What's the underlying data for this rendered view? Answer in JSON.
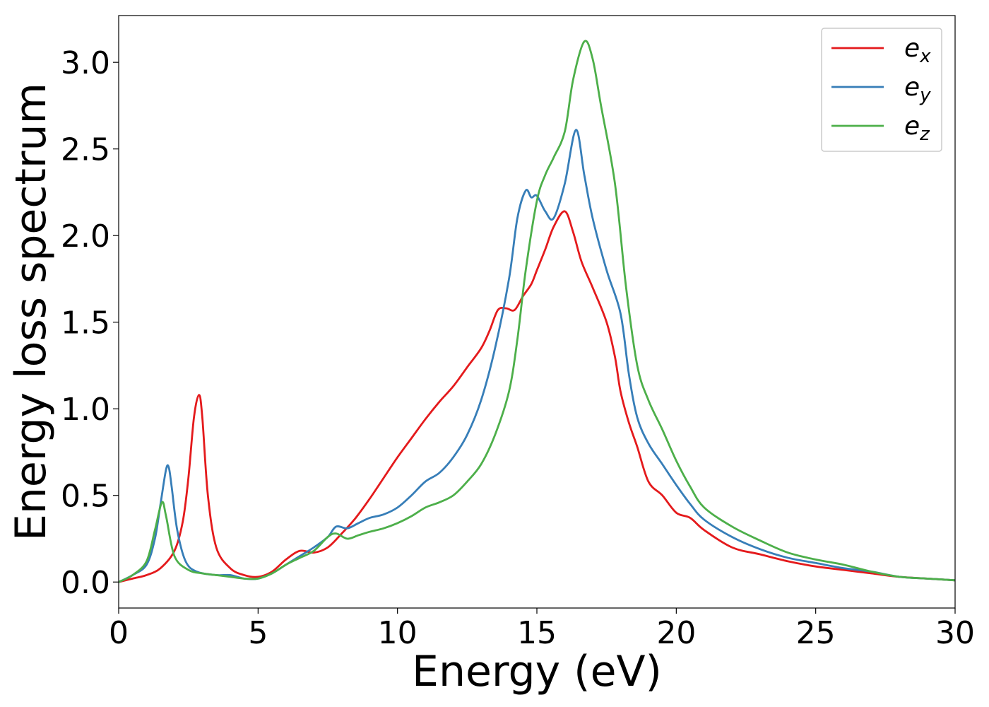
{
  "chart_data": {
    "type": "line",
    "title": "",
    "xlabel": "Energy (eV)",
    "ylabel": "Energy loss spectrum",
    "xlim": [
      0,
      30
    ],
    "ylim": [
      -0.15,
      3.27
    ],
    "xticks": [
      0,
      5,
      10,
      15,
      20,
      25,
      30
    ],
    "xtick_labels": [
      "0",
      "5",
      "10",
      "15",
      "20",
      "25",
      "30"
    ],
    "yticks": [
      0.0,
      0.5,
      1.0,
      1.5,
      2.0,
      2.5,
      3.0
    ],
    "ytick_labels": [
      "0.0",
      "0.5",
      "1.0",
      "1.5",
      "2.0",
      "2.5",
      "3.0"
    ],
    "grid": false,
    "legend_position": "top-right",
    "series": [
      {
        "name": "e_x",
        "label_main": "e",
        "label_sub": "x",
        "color": "#e41a1c",
        "points": [
          [
            0,
            0
          ],
          [
            0.5,
            0.02
          ],
          [
            1.0,
            0.04
          ],
          [
            1.5,
            0.08
          ],
          [
            2.0,
            0.18
          ],
          [
            2.3,
            0.35
          ],
          [
            2.5,
            0.6
          ],
          [
            2.7,
            0.95
          ],
          [
            2.88,
            1.08
          ],
          [
            3.0,
            0.95
          ],
          [
            3.2,
            0.5
          ],
          [
            3.5,
            0.2
          ],
          [
            4.0,
            0.08
          ],
          [
            4.5,
            0.04
          ],
          [
            5.0,
            0.03
          ],
          [
            5.5,
            0.06
          ],
          [
            6.0,
            0.13
          ],
          [
            6.5,
            0.18
          ],
          [
            7.0,
            0.17
          ],
          [
            7.5,
            0.2
          ],
          [
            8.0,
            0.28
          ],
          [
            8.5,
            0.37
          ],
          [
            9.0,
            0.48
          ],
          [
            9.5,
            0.6
          ],
          [
            10.0,
            0.72
          ],
          [
            10.5,
            0.83
          ],
          [
            11.0,
            0.94
          ],
          [
            11.5,
            1.04
          ],
          [
            12.0,
            1.13
          ],
          [
            12.5,
            1.24
          ],
          [
            13.0,
            1.35
          ],
          [
            13.3,
            1.45
          ],
          [
            13.6,
            1.57
          ],
          [
            13.9,
            1.58
          ],
          [
            14.2,
            1.57
          ],
          [
            14.5,
            1.65
          ],
          [
            14.8,
            1.72
          ],
          [
            15.0,
            1.8
          ],
          [
            15.3,
            1.92
          ],
          [
            15.6,
            2.05
          ],
          [
            16.0,
            2.14
          ],
          [
            16.3,
            2.02
          ],
          [
            16.6,
            1.85
          ],
          [
            17.0,
            1.7
          ],
          [
            17.5,
            1.5
          ],
          [
            17.8,
            1.3
          ],
          [
            18.0,
            1.1
          ],
          [
            18.3,
            0.92
          ],
          [
            18.6,
            0.78
          ],
          [
            19.0,
            0.58
          ],
          [
            19.5,
            0.5
          ],
          [
            20.0,
            0.4
          ],
          [
            20.5,
            0.37
          ],
          [
            21.0,
            0.3
          ],
          [
            22.0,
            0.2
          ],
          [
            23.0,
            0.16
          ],
          [
            24.0,
            0.12
          ],
          [
            25.0,
            0.09
          ],
          [
            26.0,
            0.07
          ],
          [
            27.0,
            0.05
          ],
          [
            28.0,
            0.03
          ],
          [
            29.0,
            0.02
          ],
          [
            30.0,
            0.01
          ]
        ]
      },
      {
        "name": "e_y",
        "label_main": "e",
        "label_sub": "y",
        "color": "#377eb8",
        "points": [
          [
            0,
            0
          ],
          [
            0.5,
            0.04
          ],
          [
            1.0,
            0.1
          ],
          [
            1.3,
            0.25
          ],
          [
            1.5,
            0.45
          ],
          [
            1.7,
            0.65
          ],
          [
            1.8,
            0.66
          ],
          [
            1.9,
            0.55
          ],
          [
            2.1,
            0.3
          ],
          [
            2.4,
            0.12
          ],
          [
            2.8,
            0.06
          ],
          [
            3.5,
            0.04
          ],
          [
            4.0,
            0.04
          ],
          [
            4.5,
            0.02
          ],
          [
            5.0,
            0.02
          ],
          [
            5.5,
            0.05
          ],
          [
            6.0,
            0.1
          ],
          [
            6.5,
            0.15
          ],
          [
            7.0,
            0.2
          ],
          [
            7.5,
            0.26
          ],
          [
            7.8,
            0.32
          ],
          [
            8.2,
            0.31
          ],
          [
            8.6,
            0.34
          ],
          [
            9.0,
            0.37
          ],
          [
            9.5,
            0.39
          ],
          [
            10.0,
            0.43
          ],
          [
            10.5,
            0.5
          ],
          [
            11.0,
            0.58
          ],
          [
            11.5,
            0.63
          ],
          [
            12.0,
            0.72
          ],
          [
            12.5,
            0.85
          ],
          [
            13.0,
            1.05
          ],
          [
            13.5,
            1.35
          ],
          [
            14.0,
            1.75
          ],
          [
            14.3,
            2.1
          ],
          [
            14.6,
            2.26
          ],
          [
            14.8,
            2.22
          ],
          [
            15.0,
            2.23
          ],
          [
            15.3,
            2.14
          ],
          [
            15.6,
            2.1
          ],
          [
            16.0,
            2.3
          ],
          [
            16.4,
            2.61
          ],
          [
            16.7,
            2.35
          ],
          [
            17.0,
            2.1
          ],
          [
            17.5,
            1.8
          ],
          [
            18.0,
            1.55
          ],
          [
            18.3,
            1.2
          ],
          [
            18.6,
            0.95
          ],
          [
            19.0,
            0.8
          ],
          [
            19.5,
            0.68
          ],
          [
            20.0,
            0.56
          ],
          [
            20.5,
            0.45
          ],
          [
            21.0,
            0.36
          ],
          [
            22.0,
            0.26
          ],
          [
            23.0,
            0.19
          ],
          [
            24.0,
            0.14
          ],
          [
            25.0,
            0.11
          ],
          [
            26.0,
            0.08
          ],
          [
            27.0,
            0.06
          ],
          [
            28.0,
            0.03
          ],
          [
            29.0,
            0.02
          ],
          [
            30.0,
            0.01
          ]
        ]
      },
      {
        "name": "e_z",
        "label_main": "e",
        "label_sub": "z",
        "color": "#4daf4a",
        "points": [
          [
            0,
            0
          ],
          [
            0.5,
            0.04
          ],
          [
            1.0,
            0.12
          ],
          [
            1.3,
            0.3
          ],
          [
            1.55,
            0.46
          ],
          [
            1.7,
            0.38
          ],
          [
            2.0,
            0.15
          ],
          [
            2.5,
            0.07
          ],
          [
            3.0,
            0.05
          ],
          [
            3.5,
            0.04
          ],
          [
            4.0,
            0.03
          ],
          [
            4.5,
            0.02
          ],
          [
            5.0,
            0.02
          ],
          [
            5.5,
            0.05
          ],
          [
            6.0,
            0.1
          ],
          [
            6.5,
            0.14
          ],
          [
            7.0,
            0.18
          ],
          [
            7.5,
            0.26
          ],
          [
            7.8,
            0.28
          ],
          [
            8.2,
            0.25
          ],
          [
            8.6,
            0.27
          ],
          [
            9.0,
            0.29
          ],
          [
            9.5,
            0.31
          ],
          [
            10.0,
            0.34
          ],
          [
            10.5,
            0.38
          ],
          [
            11.0,
            0.43
          ],
          [
            11.5,
            0.46
          ],
          [
            12.0,
            0.5
          ],
          [
            12.5,
            0.58
          ],
          [
            13.0,
            0.68
          ],
          [
            13.5,
            0.85
          ],
          [
            14.0,
            1.1
          ],
          [
            14.3,
            1.4
          ],
          [
            14.6,
            1.8
          ],
          [
            15.0,
            2.2
          ],
          [
            15.3,
            2.35
          ],
          [
            15.6,
            2.45
          ],
          [
            16.0,
            2.6
          ],
          [
            16.3,
            2.9
          ],
          [
            16.7,
            3.12
          ],
          [
            17.0,
            3.02
          ],
          [
            17.3,
            2.75
          ],
          [
            17.8,
            2.3
          ],
          [
            18.2,
            1.7
          ],
          [
            18.6,
            1.25
          ],
          [
            19.0,
            1.05
          ],
          [
            19.5,
            0.88
          ],
          [
            20.0,
            0.7
          ],
          [
            20.5,
            0.55
          ],
          [
            21.0,
            0.43
          ],
          [
            22.0,
            0.32
          ],
          [
            23.0,
            0.24
          ],
          [
            24.0,
            0.17
          ],
          [
            25.0,
            0.13
          ],
          [
            26.0,
            0.1
          ],
          [
            27.0,
            0.06
          ],
          [
            28.0,
            0.03
          ],
          [
            29.0,
            0.02
          ],
          [
            30.0,
            0.01
          ]
        ]
      }
    ]
  }
}
